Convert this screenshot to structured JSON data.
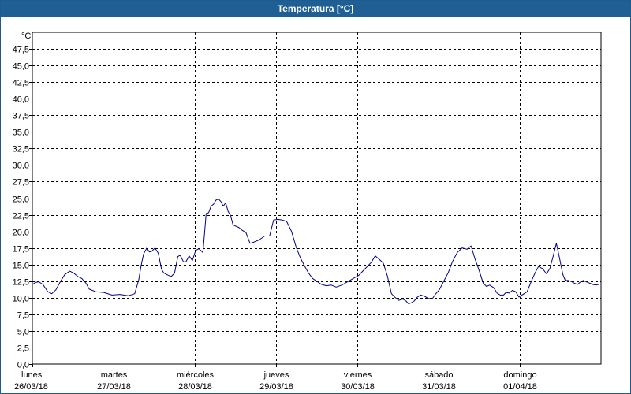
{
  "window": {
    "title": "Temperatura [°C]"
  },
  "chart_data": {
    "type": "line",
    "title": "Temperatura [°C]",
    "ylabel": "°C",
    "xlabel": "",
    "ylim": [
      0,
      50
    ],
    "xlim": [
      0,
      7
    ],
    "grid": true,
    "y_ticks": [
      "0,0",
      "2,5",
      "5,0",
      "7,5",
      "10,0",
      "12,5",
      "15,0",
      "17,5",
      "20,0",
      "22,5",
      "25,0",
      "27,5",
      "30,0",
      "32,5",
      "35,0",
      "37,5",
      "40,0",
      "42,5",
      "45,0",
      "47,5"
    ],
    "x_ticks": [
      {
        "day": "lunes",
        "date": "26/03/18"
      },
      {
        "day": "martes",
        "date": "27/03/18"
      },
      {
        "day": "miércoles",
        "date": "28/03/18"
      },
      {
        "day": "jueves",
        "date": "29/03/18"
      },
      {
        "day": "viernes",
        "date": "30/03/18"
      },
      {
        "day": "sábado",
        "date": "31/03/18"
      },
      {
        "day": "domingo",
        "date": "01/04/18"
      }
    ],
    "series": [
      {
        "color": "#00008b",
        "x": [
          0.0,
          0.04,
          0.08,
          0.13,
          0.19,
          0.24,
          0.29,
          0.34,
          0.4,
          0.46,
          0.51,
          0.56,
          0.61,
          0.66,
          0.7,
          0.78,
          0.88,
          0.98,
          1.08,
          1.18,
          1.26,
          1.31,
          1.34,
          1.37,
          1.41,
          1.44,
          1.47,
          1.51,
          1.55,
          1.59,
          1.62,
          1.67,
          1.71,
          1.75,
          1.79,
          1.82,
          1.86,
          1.89,
          1.93,
          1.97,
          2.01,
          2.05,
          2.1,
          2.14,
          2.17,
          2.2,
          2.23,
          2.26,
          2.29,
          2.32,
          2.35,
          2.38,
          2.41,
          2.44,
          2.47,
          2.5,
          2.54,
          2.58,
          2.63,
          2.68,
          2.73,
          2.79,
          2.86,
          2.92,
          2.97,
          3.02,
          3.08,
          3.13,
          3.19,
          3.25,
          3.3,
          3.35,
          3.4,
          3.45,
          3.5,
          3.56,
          3.62,
          3.68,
          3.74,
          3.81,
          3.88,
          3.95,
          4.02,
          4.09,
          4.17,
          4.22,
          4.27,
          4.32,
          4.37,
          4.42,
          4.47,
          4.51,
          4.56,
          4.6,
          4.63,
          4.66,
          4.7,
          4.74,
          4.78,
          4.83,
          4.87,
          4.92,
          4.96,
          5.01,
          5.06,
          5.12,
          5.17,
          5.23,
          5.29,
          5.35,
          5.4,
          5.45,
          5.5,
          5.55,
          5.59,
          5.63,
          5.68,
          5.72,
          5.76,
          5.8,
          5.83,
          5.87,
          5.91,
          5.95,
          5.99,
          6.04,
          6.09,
          6.14,
          6.19,
          6.23,
          6.28,
          6.33,
          6.37,
          6.41,
          6.45,
          6.49,
          6.53,
          6.56,
          6.6,
          6.64,
          6.67,
          6.71,
          6.74,
          6.78,
          6.82,
          6.86,
          6.9,
          6.94,
          6.97
        ],
        "y": [
          12.0,
          12.3,
          12.4,
          12.0,
          10.9,
          10.6,
          11.2,
          12.3,
          13.5,
          14.0,
          13.7,
          13.2,
          12.9,
          12.2,
          11.3,
          10.9,
          10.8,
          10.4,
          10.5,
          10.3,
          10.6,
          12.7,
          14.9,
          16.6,
          17.5,
          16.9,
          17.0,
          17.5,
          16.7,
          14.3,
          13.7,
          13.4,
          13.2,
          13.7,
          16.2,
          16.4,
          15.4,
          15.4,
          16.3,
          15.6,
          17.1,
          17.4,
          16.8,
          22.7,
          22.8,
          23.8,
          24.1,
          24.7,
          24.9,
          24.5,
          23.8,
          24.3,
          23.0,
          22.4,
          21.0,
          20.8,
          20.6,
          20.2,
          19.8,
          18.2,
          18.4,
          18.7,
          19.3,
          19.3,
          21.7,
          21.8,
          21.7,
          21.5,
          20.0,
          17.5,
          16.0,
          14.8,
          13.7,
          12.9,
          12.5,
          12.0,
          11.8,
          11.9,
          11.6,
          11.9,
          12.4,
          12.9,
          13.4,
          14.3,
          15.3,
          16.3,
          15.8,
          15.2,
          13.3,
          10.6,
          10.0,
          9.6,
          9.8,
          9.5,
          9.1,
          9.2,
          9.5,
          10.1,
          10.4,
          10.2,
          9.9,
          9.8,
          10.5,
          11.2,
          12.4,
          13.8,
          15.4,
          16.8,
          17.5,
          17.3,
          17.8,
          15.8,
          14.1,
          12.2,
          11.7,
          11.9,
          11.5,
          10.7,
          10.4,
          10.4,
          10.8,
          10.7,
          11.1,
          10.9,
          10.1,
          10.5,
          10.9,
          12.4,
          13.8,
          14.7,
          14.4,
          13.6,
          14.4,
          16.2,
          18.2,
          15.9,
          13.5,
          12.6,
          12.6,
          12.4,
          12.2,
          12.0,
          12.3,
          12.6,
          12.4,
          12.2,
          12.0,
          11.9,
          12.0
        ]
      }
    ]
  }
}
